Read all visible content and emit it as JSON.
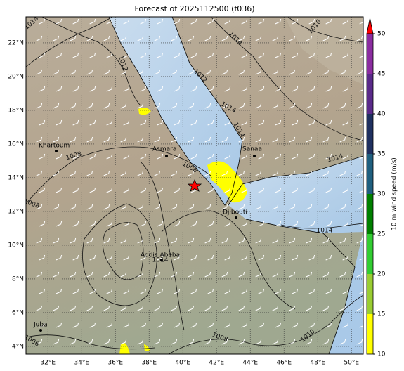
{
  "title": "Forecast of 2025112500 (f036)",
  "map": {
    "xlim": [
      30.7,
      50.7
    ],
    "ylim": [
      3.54,
      23.54
    ],
    "xticks": [
      {
        "value": 32,
        "label": "32°E"
      },
      {
        "value": 34,
        "label": "34°E"
      },
      {
        "value": 36,
        "label": "36°E"
      },
      {
        "value": 38,
        "label": "38°E"
      },
      {
        "value": 40,
        "label": "40°E"
      },
      {
        "value": 42,
        "label": "42°E"
      },
      {
        "value": 44,
        "label": "44°E"
      },
      {
        "value": 46,
        "label": "46°E"
      },
      {
        "value": 48,
        "label": "48°E"
      },
      {
        "value": 50,
        "label": "50°E"
      }
    ],
    "yticks": [
      {
        "value": 4,
        "label": "4°N"
      },
      {
        "value": 6,
        "label": "6°N"
      },
      {
        "value": 8,
        "label": "8°N"
      },
      {
        "value": 10,
        "label": "10°N"
      },
      {
        "value": 12,
        "label": "12°N"
      },
      {
        "value": 14,
        "label": "14°N"
      },
      {
        "value": 16,
        "label": "16°N"
      },
      {
        "value": 18,
        "label": "18°N"
      },
      {
        "value": 20,
        "label": "20°N"
      },
      {
        "value": 22,
        "label": "22°N"
      }
    ],
    "grid": true,
    "cities": [
      "Khartoum",
      "Asmara",
      "Sanaa",
      "Djibouti",
      "Addis Abeba",
      "Juba"
    ],
    "contour_labels": [
      "1014",
      "1016",
      "1014",
      "1012",
      "1012",
      "1014",
      "1014",
      "1008",
      "1006",
      "1014",
      "1008",
      "1014",
      "1014",
      "1008",
      "1010",
      "1006"
    ]
  },
  "colorbar": {
    "label": "10 m wind speed (m/s)",
    "lim": [
      10,
      50
    ],
    "ticks": [
      10,
      15,
      20,
      25,
      30,
      35,
      40,
      45,
      50
    ],
    "colors": [
      "#ffff00",
      "#9acd32",
      "#32cd32",
      "#008000",
      "#1f5f7f",
      "#1f3060",
      "#5a2a8a",
      "#8b2ca0"
    ],
    "extend_color": "#ff0000"
  }
}
